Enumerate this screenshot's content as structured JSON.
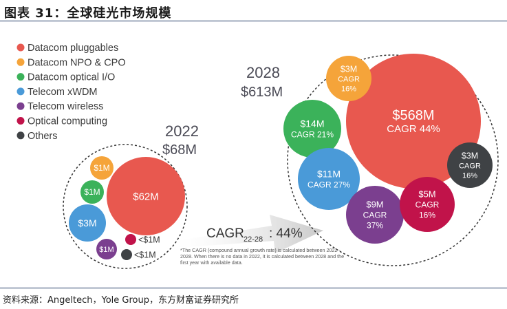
{
  "header": {
    "title": "图表 31：全球硅光市场规模"
  },
  "footer": {
    "source": "资料来源：Angeltech，Yole Group，东方财富证券研究所"
  },
  "colors": {
    "datacom_pluggables": "#e8584f",
    "datacom_npo_cpo": "#f5a43a",
    "datacom_optical_io": "#3bb25a",
    "telecom_xwdm": "#4a9ad8",
    "telecom_wireless": "#7b3f8f",
    "optical_computing": "#c1134a",
    "others": "#3f4245"
  },
  "legend": [
    {
      "label": "Datacom pluggables",
      "color": "#e8584f"
    },
    {
      "label": "Datacom NPO & CPO",
      "color": "#f5a43a"
    },
    {
      "label": "Datacom optical I/O",
      "color": "#3bb25a"
    },
    {
      "label": "Telecom xWDM",
      "color": "#4a9ad8"
    },
    {
      "label": "Telecom wireless",
      "color": "#7b3f8f"
    },
    {
      "label": "Optical computing",
      "color": "#c1134a"
    },
    {
      "label": "Others",
      "color": "#3f4245"
    }
  ],
  "arrow": {
    "cagr_label": "CAGR",
    "cagr_sub": "22-28",
    "cagr_value": ": 44%"
  },
  "footnote": [
    "*The CAGR (compound annual growth rate) is calculated between 2022 -",
    "2028. When there is no data in 2022, it is calculated between 2028 and the",
    "first year with available data."
  ],
  "chart_data": {
    "type": "bubble",
    "title": "",
    "groups": [
      {
        "year": "2022",
        "total_label": "$68M",
        "total": 68,
        "segments": [
          {
            "name": "Datacom pluggables",
            "value": 62,
            "label": "$62M"
          },
          {
            "name": "Datacom NPO & CPO",
            "value": 1,
            "label": "$1M"
          },
          {
            "name": "Datacom optical I/O",
            "value": 1,
            "label": "$1M"
          },
          {
            "name": "Telecom xWDM",
            "value": 3,
            "label": "$3M"
          },
          {
            "name": "Telecom wireless",
            "value": 1,
            "label": "$1M"
          },
          {
            "name": "Optical computing",
            "value": 0.5,
            "label": "<$1M"
          },
          {
            "name": "Others",
            "value": 0.5,
            "label": "<$1M"
          }
        ]
      },
      {
        "year": "2028",
        "total_label": "$613M",
        "total": 613,
        "segments": [
          {
            "name": "Datacom pluggables",
            "value": 568,
            "label": "$568M",
            "cagr": "CAGR 44%"
          },
          {
            "name": "Datacom NPO & CPO",
            "value": 3,
            "label": "$3M",
            "cagr": "CAGR\n16%"
          },
          {
            "name": "Datacom optical I/O",
            "value": 14,
            "label": "$14M",
            "cagr": "CAGR 21%"
          },
          {
            "name": "Telecom xWDM",
            "value": 11,
            "label": "$11M",
            "cagr": "CAGR 27%"
          },
          {
            "name": "Telecom wireless",
            "value": 9,
            "label": "$9M",
            "cagr": "CAGR\n37%"
          },
          {
            "name": "Optical computing",
            "value": 5,
            "label": "$5M",
            "cagr": "CAGR\n16%"
          },
          {
            "name": "Others",
            "value": 3,
            "label": "$3M",
            "cagr": "CAGR\n16%"
          }
        ]
      }
    ],
    "overall_cagr": "44%"
  }
}
